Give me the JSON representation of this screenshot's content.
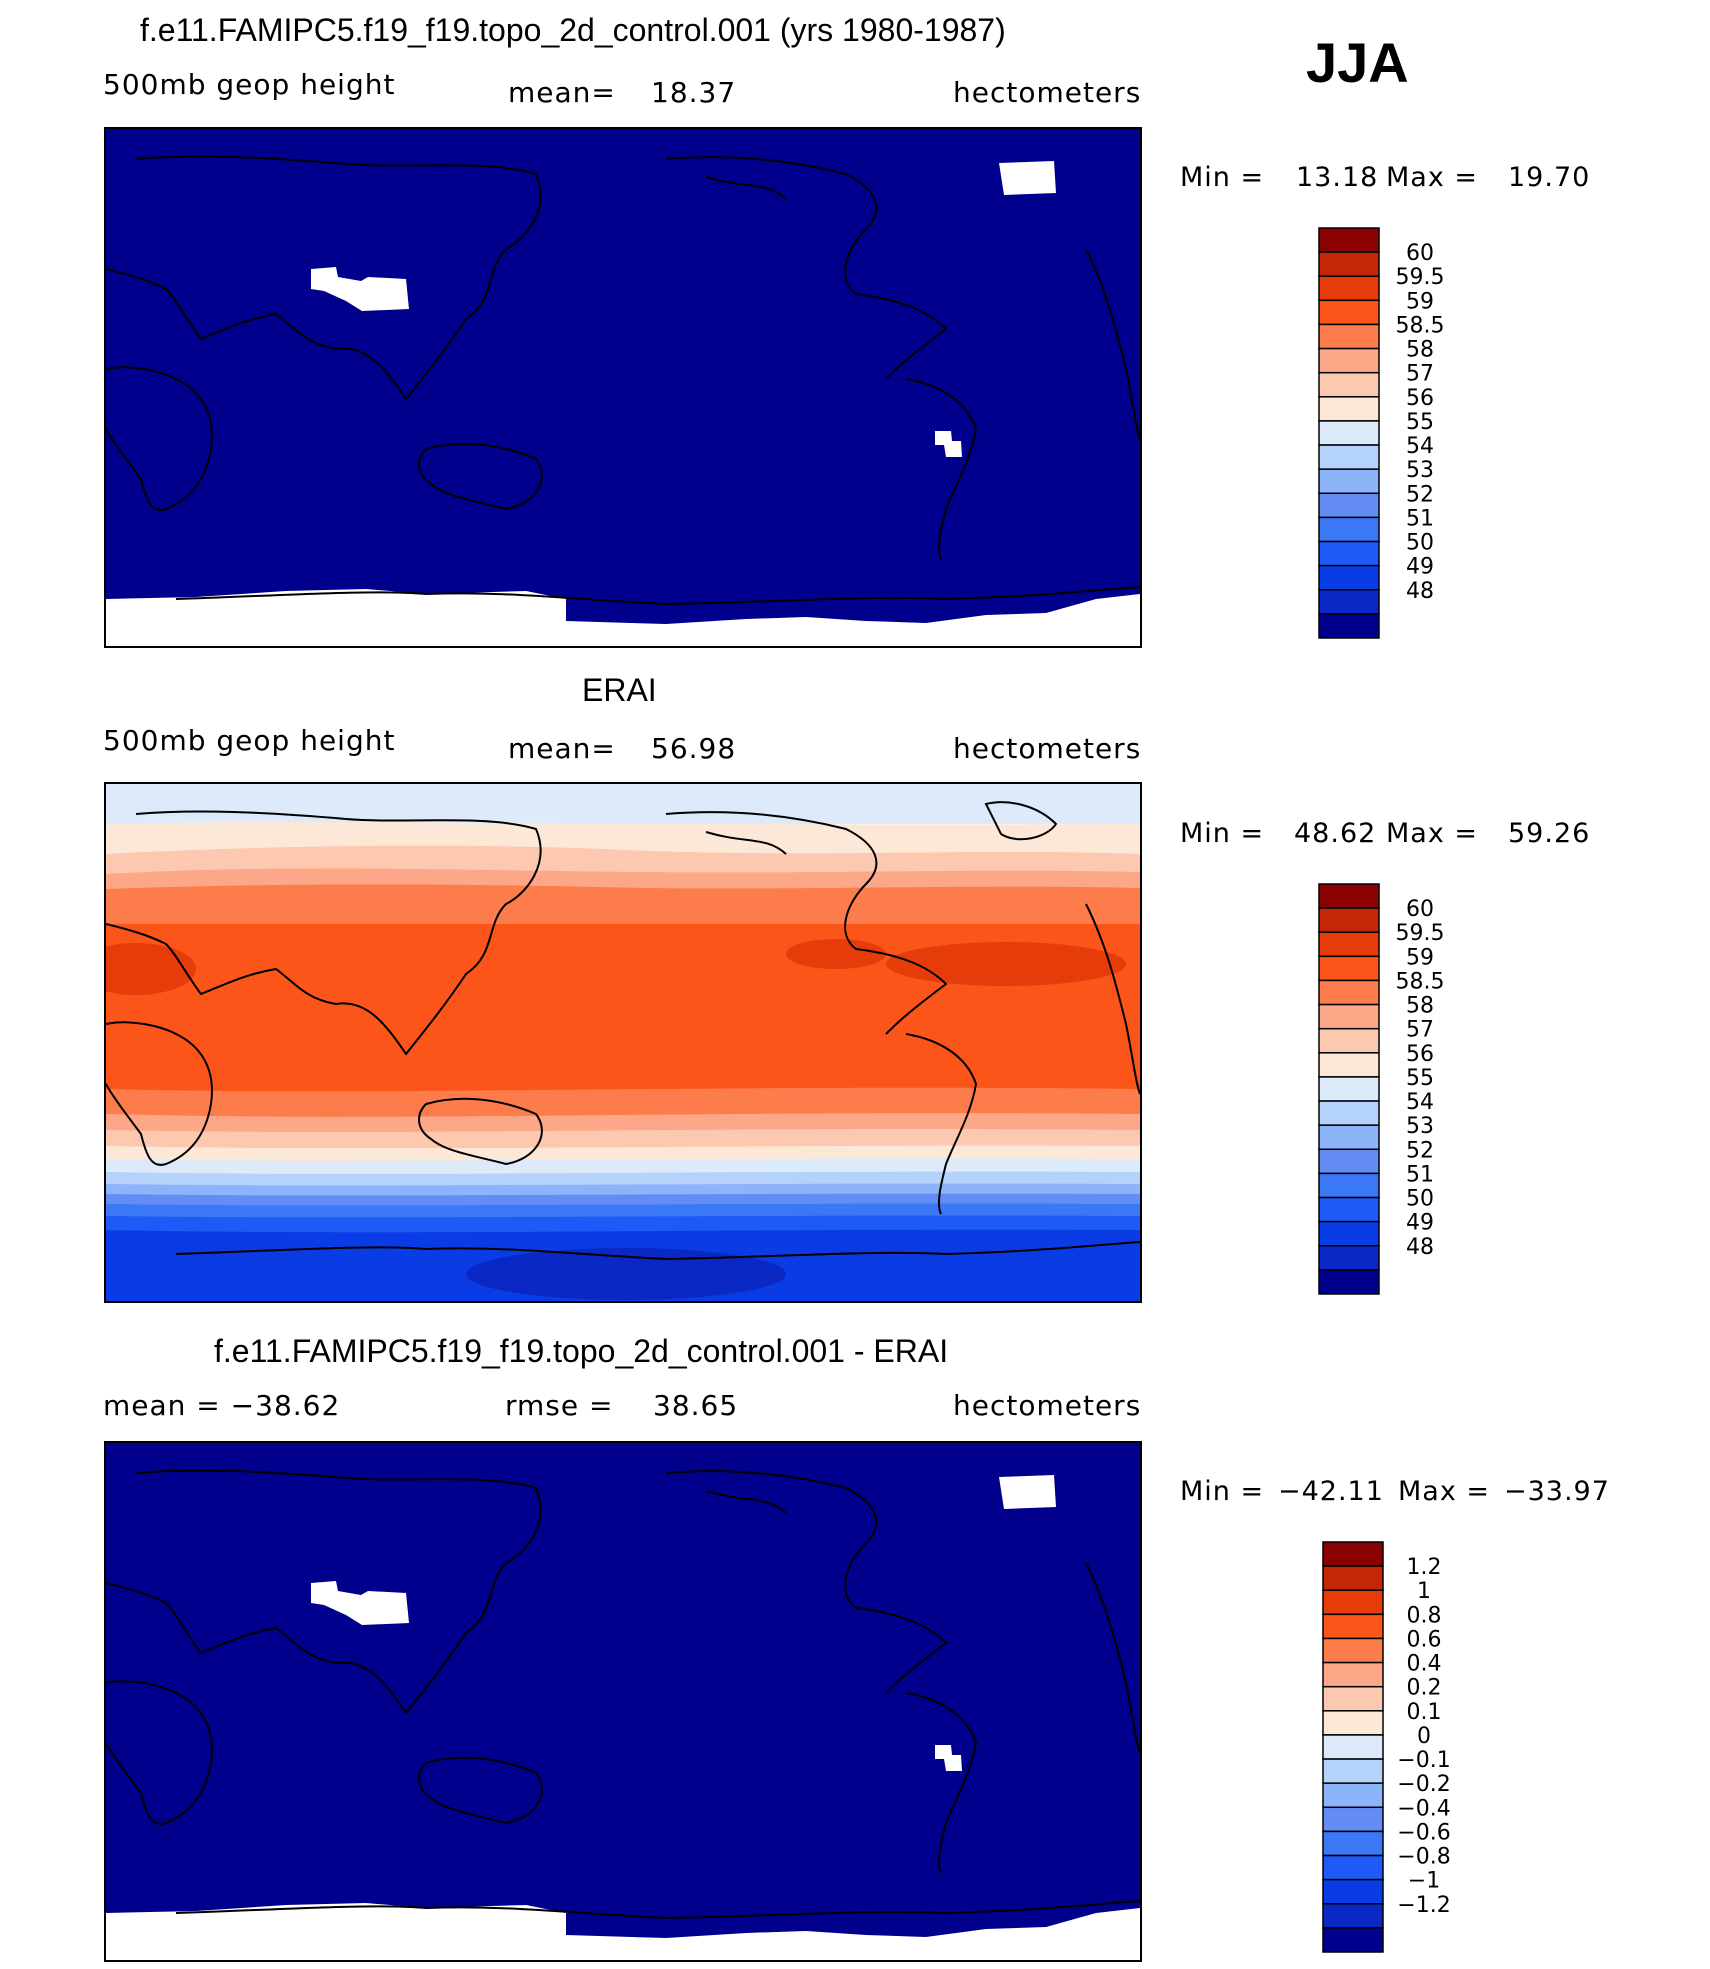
{
  "season_label": "JJA",
  "colors": {
    "scale": [
      "#00008c",
      "#0a28c4",
      "#0a3ce6",
      "#1e5af5",
      "#3c78f5",
      "#648cf5",
      "#8cb4fa",
      "#b4d2fa",
      "#dceafa",
      "#fde8d8",
      "#fcc9b0",
      "#fca888",
      "#fc7d4b",
      "#fc5519",
      "#e63c0a",
      "#c32705",
      "#8b0000"
    ],
    "deep": "#00008c",
    "land_outline": "#000000"
  },
  "panels": [
    {
      "title": "f.e11.FAMIPC5.f19_f19.topo_2d_control.001 (yrs 1980-1987)",
      "left_label": "500mb  geop  height",
      "mean_label": "mean=",
      "mean_value": "18.37",
      "units": "hectometers",
      "min_label": "Min  =",
      "min_value": "13.18",
      "max_label": "Max  =",
      "max_value": "19.70",
      "colorbar_labels": [
        "60",
        "59.5",
        "59",
        "58.5",
        "58",
        "57",
        "56",
        "55",
        "54",
        "53",
        "52",
        "51",
        "50",
        "49",
        "48"
      ]
    },
    {
      "title": "ERAI",
      "left_label": "500mb  geop  height",
      "mean_label": "mean=",
      "mean_value": "56.98",
      "units": "hectometers",
      "min_label": "Min  =",
      "min_value": "48.62",
      "max_label": "Max  =",
      "max_value": "59.26",
      "colorbar_labels": [
        "60",
        "59.5",
        "59",
        "58.5",
        "58",
        "57",
        "56",
        "55",
        "54",
        "53",
        "52",
        "51",
        "50",
        "49",
        "48"
      ]
    },
    {
      "title": "f.e11.FAMIPC5.f19_f19.topo_2d_control.001 - ERAI",
      "left_label": "mean  =  −38.62",
      "mean_label": "rmse  =",
      "mean_value": "38.65",
      "units": "hectometers",
      "min_label": "Min  =",
      "min_value": "−42.11",
      "max_label": "Max  =",
      "max_value": "−33.97",
      "colorbar_labels": [
        "1.2",
        "1",
        "0.8",
        "0.6",
        "0.4",
        "0.2",
        "0.1",
        "0",
        "−0.1",
        "−0.2",
        "−0.4",
        "−0.6",
        "−0.8",
        "−1",
        "−1.2"
      ]
    }
  ]
}
